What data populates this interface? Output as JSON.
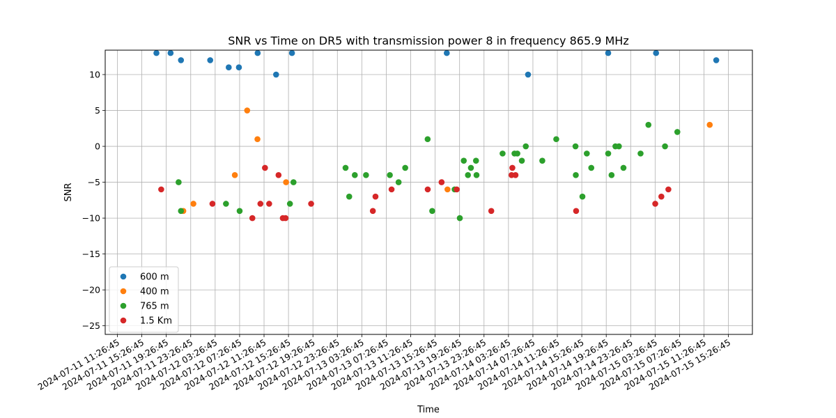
{
  "chart_data": {
    "type": "scatter",
    "title": "SNR vs Time on DR5 with transmission power 8 in frequency 865.9 MHz",
    "xlabel": "Time",
    "ylabel": "SNR",
    "ylim": [
      -26.2,
      13.4
    ],
    "xlim": [
      "2024-07-11 09:27",
      "2024-07-15 19:22"
    ],
    "yticks": [
      10,
      5,
      0,
      -5,
      -10,
      -15,
      -20,
      -25
    ],
    "xticks": [
      "2024-07-11 11:26:45",
      "2024-07-11 15:26:45",
      "2024-07-11 19:26:45",
      "2024-07-11 23:26:45",
      "2024-07-12 03:26:45",
      "2024-07-12 07:26:45",
      "2024-07-12 11:26:45",
      "2024-07-12 15:26:45",
      "2024-07-12 19:26:45",
      "2024-07-12 23:26:45",
      "2024-07-13 03:26:45",
      "2024-07-13 07:26:45",
      "2024-07-13 11:26:45",
      "2024-07-13 15:26:45",
      "2024-07-13 19:26:45",
      "2024-07-13 23:26:45",
      "2024-07-14 03:26:45",
      "2024-07-14 07:26:45",
      "2024-07-14 11:26:45",
      "2024-07-14 15:26:45",
      "2024-07-14 19:26:45",
      "2024-07-14 23:26:45",
      "2024-07-15 03:26:45",
      "2024-07-15 07:26:45",
      "2024-07-15 11:26:45",
      "2024-07-15 15:26:45"
    ],
    "grid": true,
    "legend_position": "lower-left",
    "series": [
      {
        "name": "600 m",
        "color": "#1f77b4",
        "points": [
          [
            "2024-07-11 17:50",
            13
          ],
          [
            "2024-07-11 20:09",
            13
          ],
          [
            "2024-07-11 21:51",
            12
          ],
          [
            "2024-07-12 02:38",
            12
          ],
          [
            "2024-07-12 05:40",
            11
          ],
          [
            "2024-07-12 07:20",
            11
          ],
          [
            "2024-07-12 10:24",
            13
          ],
          [
            "2024-07-12 13:25",
            10
          ],
          [
            "2024-07-12 16:01",
            13
          ],
          [
            "2024-07-13 17:21",
            13
          ],
          [
            "2024-07-14 06:39",
            10
          ],
          [
            "2024-07-14 19:46",
            13
          ],
          [
            "2024-07-15 03:36",
            13
          ],
          [
            "2024-07-15 13:27",
            12
          ]
        ]
      },
      {
        "name": "400 m",
        "color": "#ff7f0e",
        "points": [
          [
            "2024-07-11 22:14",
            -9
          ],
          [
            "2024-07-11 23:53",
            -8
          ],
          [
            "2024-07-12 06:40",
            -4
          ],
          [
            "2024-07-12 08:41",
            5
          ],
          [
            "2024-07-12 10:22",
            1
          ],
          [
            "2024-07-12 15:03",
            -5
          ],
          [
            "2024-07-13 17:28",
            -6
          ],
          [
            "2024-07-15 12:23",
            3
          ]
        ]
      },
      {
        "name": "765 m",
        "color": "#2ca02c",
        "points": [
          [
            "2024-07-11 21:28",
            -5
          ],
          [
            "2024-07-11 21:51",
            -9
          ],
          [
            "2024-07-12 05:13",
            -8
          ],
          [
            "2024-07-12 07:27",
            -9
          ],
          [
            "2024-07-12 15:41",
            -8
          ],
          [
            "2024-07-12 16:16",
            -5
          ],
          [
            "2024-07-13 00:47",
            -3
          ],
          [
            "2024-07-13 01:23",
            -7
          ],
          [
            "2024-07-13 02:18",
            -4
          ],
          [
            "2024-07-13 04:08",
            -4
          ],
          [
            "2024-07-13 08:02",
            -4
          ],
          [
            "2024-07-13 09:28",
            -5
          ],
          [
            "2024-07-13 10:33",
            -3
          ],
          [
            "2024-07-13 14:13",
            1
          ],
          [
            "2024-07-13 14:58",
            -9
          ],
          [
            "2024-07-13 18:38",
            -6
          ],
          [
            "2024-07-13 19:29",
            -10
          ],
          [
            "2024-07-13 20:08",
            -2
          ],
          [
            "2024-07-13 20:49",
            -4
          ],
          [
            "2024-07-13 21:18",
            -3
          ],
          [
            "2024-07-13 22:08",
            -2
          ],
          [
            "2024-07-13 22:13",
            -4
          ],
          [
            "2024-07-14 02:29",
            -1
          ],
          [
            "2024-07-14 04:26",
            -1
          ],
          [
            "2024-07-14 04:54",
            -1
          ],
          [
            "2024-07-14 05:38",
            -2
          ],
          [
            "2024-07-14 06:17",
            0
          ],
          [
            "2024-07-14 08:59",
            -2
          ],
          [
            "2024-07-14 11:16",
            1
          ],
          [
            "2024-07-14 14:28",
            -4
          ],
          [
            "2024-07-14 14:25",
            0
          ],
          [
            "2024-07-14 15:33",
            -7
          ],
          [
            "2024-07-14 16:16",
            -1
          ],
          [
            "2024-07-14 17:00",
            -3
          ],
          [
            "2024-07-14 19:46",
            -1
          ],
          [
            "2024-07-14 20:19",
            -4
          ],
          [
            "2024-07-14 20:57",
            0
          ],
          [
            "2024-07-14 21:31",
            0
          ],
          [
            "2024-07-14 22:16",
            -3
          ],
          [
            "2024-07-15 01:04",
            -1
          ],
          [
            "2024-07-15 02:21",
            3
          ],
          [
            "2024-07-15 05:04",
            0
          ],
          [
            "2024-07-15 07:05",
            2
          ]
        ]
      },
      {
        "name": "1.5 Km",
        "color": "#d62728",
        "points": [
          [
            "2024-07-11 18:37",
            -6
          ],
          [
            "2024-07-12 03:00",
            -8
          ],
          [
            "2024-07-12 09:32",
            -10
          ],
          [
            "2024-07-12 10:51",
            -8
          ],
          [
            "2024-07-12 11:36",
            -3
          ],
          [
            "2024-07-12 12:17",
            -8
          ],
          [
            "2024-07-12 13:49",
            -4
          ],
          [
            "2024-07-12 14:31",
            -10
          ],
          [
            "2024-07-12 14:58",
            -10
          ],
          [
            "2024-07-12 19:09",
            -8
          ],
          [
            "2024-07-13 05:15",
            -9
          ],
          [
            "2024-07-13 05:41",
            -7
          ],
          [
            "2024-07-13 08:19",
            -6
          ],
          [
            "2024-07-13 14:14",
            -6
          ],
          [
            "2024-07-13 16:30",
            -5
          ],
          [
            "2024-07-13 18:59",
            -6
          ],
          [
            "2024-07-14 00:38",
            -9
          ],
          [
            "2024-07-14 03:57",
            -4
          ],
          [
            "2024-07-14 04:05",
            -3
          ],
          [
            "2024-07-14 04:36",
            -4
          ],
          [
            "2024-07-14 14:31",
            -9
          ],
          [
            "2024-07-15 03:28",
            -8
          ],
          [
            "2024-07-15 04:28",
            -7
          ],
          [
            "2024-07-15 05:37",
            -6
          ]
        ]
      }
    ]
  }
}
